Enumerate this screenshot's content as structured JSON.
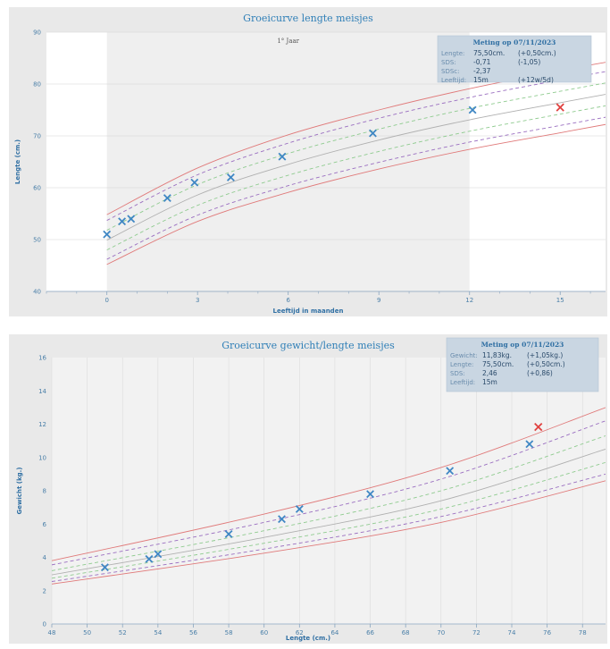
{
  "chart_data": [
    {
      "type": "line",
      "title": "Groeicurve lengte meisjes",
      "xlabel": "Leeftijd in maanden",
      "ylabel": "Lengte (cm.)",
      "xlim": [
        -2,
        16.5
      ],
      "ylim": [
        40,
        90
      ],
      "xticks": [
        0,
        3,
        6,
        9,
        12,
        15
      ],
      "yticks": [
        40,
        50,
        60,
        70,
        80,
        90
      ],
      "annotation": "1° Jaar",
      "shaded_range": [
        0,
        12
      ],
      "reference_curves": [
        {
          "style": "solid",
          "color": "#e07a7a",
          "x": [
            0,
            3,
            6,
            9,
            12,
            15,
            16.5
          ],
          "y": [
            54.8,
            63.8,
            70.2,
            75.0,
            79.1,
            82.6,
            84.2
          ]
        },
        {
          "style": "dashed",
          "color": "#9a6ec0",
          "x": [
            0,
            3,
            6,
            9,
            12,
            15,
            16.5
          ],
          "y": [
            53.7,
            62.5,
            68.6,
            73.4,
            77.4,
            80.8,
            82.4
          ]
        },
        {
          "style": "dashed",
          "color": "#8fcb8f",
          "x": [
            0,
            3,
            6,
            9,
            12,
            15,
            16.5
          ],
          "y": [
            51.8,
            60.6,
            66.6,
            71.3,
            75.3,
            78.6,
            80.2
          ]
        },
        {
          "style": "solid",
          "color": "#b0b0b0",
          "x": [
            0,
            3,
            6,
            9,
            12,
            15,
            16.5
          ],
          "y": [
            49.9,
            58.6,
            64.5,
            69.2,
            73.1,
            76.4,
            78.0
          ]
        },
        {
          "style": "dashed",
          "color": "#8fcb8f",
          "x": [
            0,
            3,
            6,
            9,
            12,
            15,
            16.5
          ],
          "y": [
            48.0,
            56.6,
            62.4,
            67.0,
            70.9,
            74.2,
            75.8
          ]
        },
        {
          "style": "dashed",
          "color": "#9a6ec0",
          "x": [
            0,
            3,
            6,
            9,
            12,
            15,
            16.5
          ],
          "y": [
            46.2,
            54.7,
            60.4,
            64.9,
            68.8,
            72.0,
            73.6
          ]
        },
        {
          "style": "solid",
          "color": "#e07a7a",
          "x": [
            0,
            3,
            6,
            9,
            12,
            15,
            16.5
          ],
          "y": [
            45.2,
            53.5,
            59.1,
            63.6,
            67.4,
            70.6,
            72.2
          ]
        }
      ],
      "measurements": {
        "x": [
          0,
          0.5,
          0.8,
          2,
          2.9,
          4.1,
          5.8,
          8.8,
          12.1
        ],
        "y": [
          51,
          53.5,
          54,
          58,
          61,
          62,
          66,
          70.5,
          75
        ]
      },
      "latest": {
        "x": 15,
        "y": 75.5
      },
      "info_box": {
        "header": "Meting op 07/11/2023",
        "rows": [
          {
            "label": "Lengte:",
            "value": "75,50cm.",
            "extra": "(+0,50cm.)"
          },
          {
            "label": "SDS:",
            "value": "-0,71",
            "extra": "(-1,05)"
          },
          {
            "label": "SDSc:",
            "value": "-2,37",
            "extra": ""
          },
          {
            "label": "Leeftijd:",
            "value": "15m",
            "extra": "(+12w/5d)"
          }
        ]
      }
    },
    {
      "type": "line",
      "title": "Groeicurve gewicht/lengte meisjes",
      "xlabel": "Lengte (cm.)",
      "ylabel": "Gewicht (kg.)",
      "xlim": [
        48,
        79.3
      ],
      "ylim": [
        0,
        16
      ],
      "xticks": [
        48,
        50,
        52,
        54,
        56,
        58,
        60,
        62,
        64,
        66,
        68,
        70,
        72,
        74,
        76,
        78
      ],
      "yticks": [
        0,
        2,
        4,
        6,
        8,
        10,
        12,
        14,
        16
      ],
      "reference_curves": [
        {
          "style": "solid",
          "color": "#e07a7a",
          "x": [
            48,
            60,
            70,
            79.3
          ],
          "y": [
            3.8,
            6.6,
            9.4,
            13.0
          ]
        },
        {
          "style": "dashed",
          "color": "#9a6ec0",
          "x": [
            48,
            60,
            70,
            79.3
          ],
          "y": [
            3.55,
            6.1,
            8.7,
            12.2
          ]
        },
        {
          "style": "dashed",
          "color": "#8fcb8f",
          "x": [
            48,
            60,
            70,
            79.3
          ],
          "y": [
            3.2,
            5.6,
            8.0,
            11.3
          ]
        },
        {
          "style": "solid",
          "color": "#b0b0b0",
          "x": [
            48,
            60,
            70,
            79.3
          ],
          "y": [
            2.95,
            5.2,
            7.4,
            10.5
          ]
        },
        {
          "style": "dashed",
          "color": "#8fcb8f",
          "x": [
            48,
            60,
            70,
            79.3
          ],
          "y": [
            2.75,
            4.85,
            6.9,
            9.7
          ]
        },
        {
          "style": "dashed",
          "color": "#9a6ec0",
          "x": [
            48,
            60,
            70,
            79.3
          ],
          "y": [
            2.55,
            4.5,
            6.45,
            9.0
          ]
        },
        {
          "style": "solid",
          "color": "#e07a7a",
          "x": [
            48,
            60,
            70,
            79.3
          ],
          "y": [
            2.4,
            4.25,
            6.1,
            8.6
          ]
        }
      ],
      "measurements": {
        "x": [
          51,
          53.5,
          54,
          58,
          61,
          62,
          66,
          70.5,
          75
        ],
        "y": [
          3.4,
          3.9,
          4.2,
          5.4,
          6.3,
          6.9,
          7.8,
          9.2,
          10.8
        ]
      },
      "latest": {
        "x": 75.5,
        "y": 11.83
      },
      "info_box": {
        "header": "Meting op 07/11/2023",
        "rows": [
          {
            "label": "Gewicht:",
            "value": "11,83kg.",
            "extra": "(+1,05kg.)"
          },
          {
            "label": "Lengte:",
            "value": "75,50cm.",
            "extra": "(+0,50cm.)"
          },
          {
            "label": "SDS:",
            "value": "2,46",
            "extra": "(+0,86)"
          },
          {
            "label": "Leeftijd:",
            "value": "15m",
            "extra": ""
          }
        ]
      }
    }
  ]
}
